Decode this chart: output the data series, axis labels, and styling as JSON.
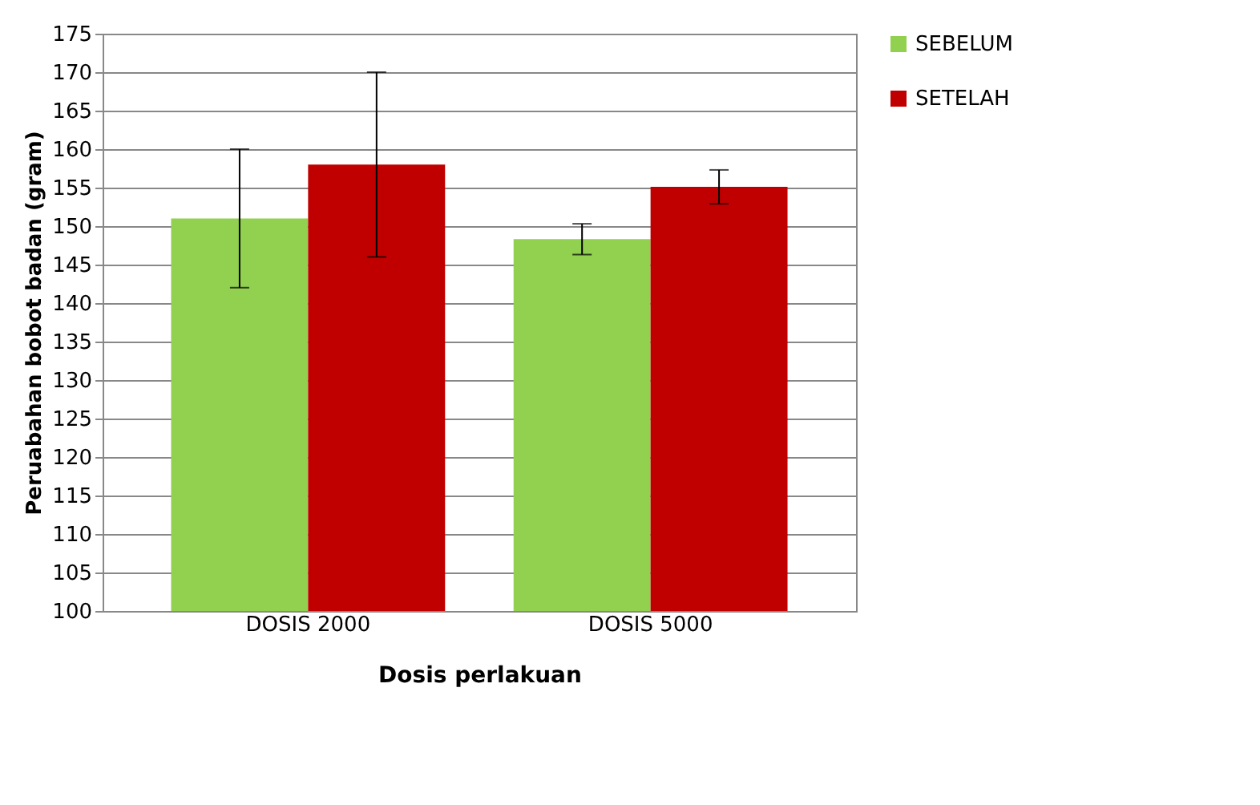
{
  "chart_data": {
    "type": "bar",
    "xlabel": "Dosis perlakuan",
    "ylabel": "Peruabahan bobot badan  (gram)",
    "categories": [
      "DOSIS 2000",
      "DOSIS 5000"
    ],
    "series": [
      {
        "name": "SEBELUM",
        "color": "#92d050",
        "values": [
          151,
          148.3
        ],
        "errors": [
          9,
          2
        ]
      },
      {
        "name": "SETELAH",
        "color": "#c00000",
        "values": [
          158,
          155.1
        ],
        "errors": [
          12,
          2.2
        ]
      }
    ],
    "ylim": [
      100,
      175
    ],
    "yticks": [
      100,
      105,
      110,
      115,
      120,
      125,
      130,
      135,
      140,
      145,
      150,
      155,
      160,
      165,
      170,
      175
    ],
    "grid": "y",
    "legend": "right"
  }
}
